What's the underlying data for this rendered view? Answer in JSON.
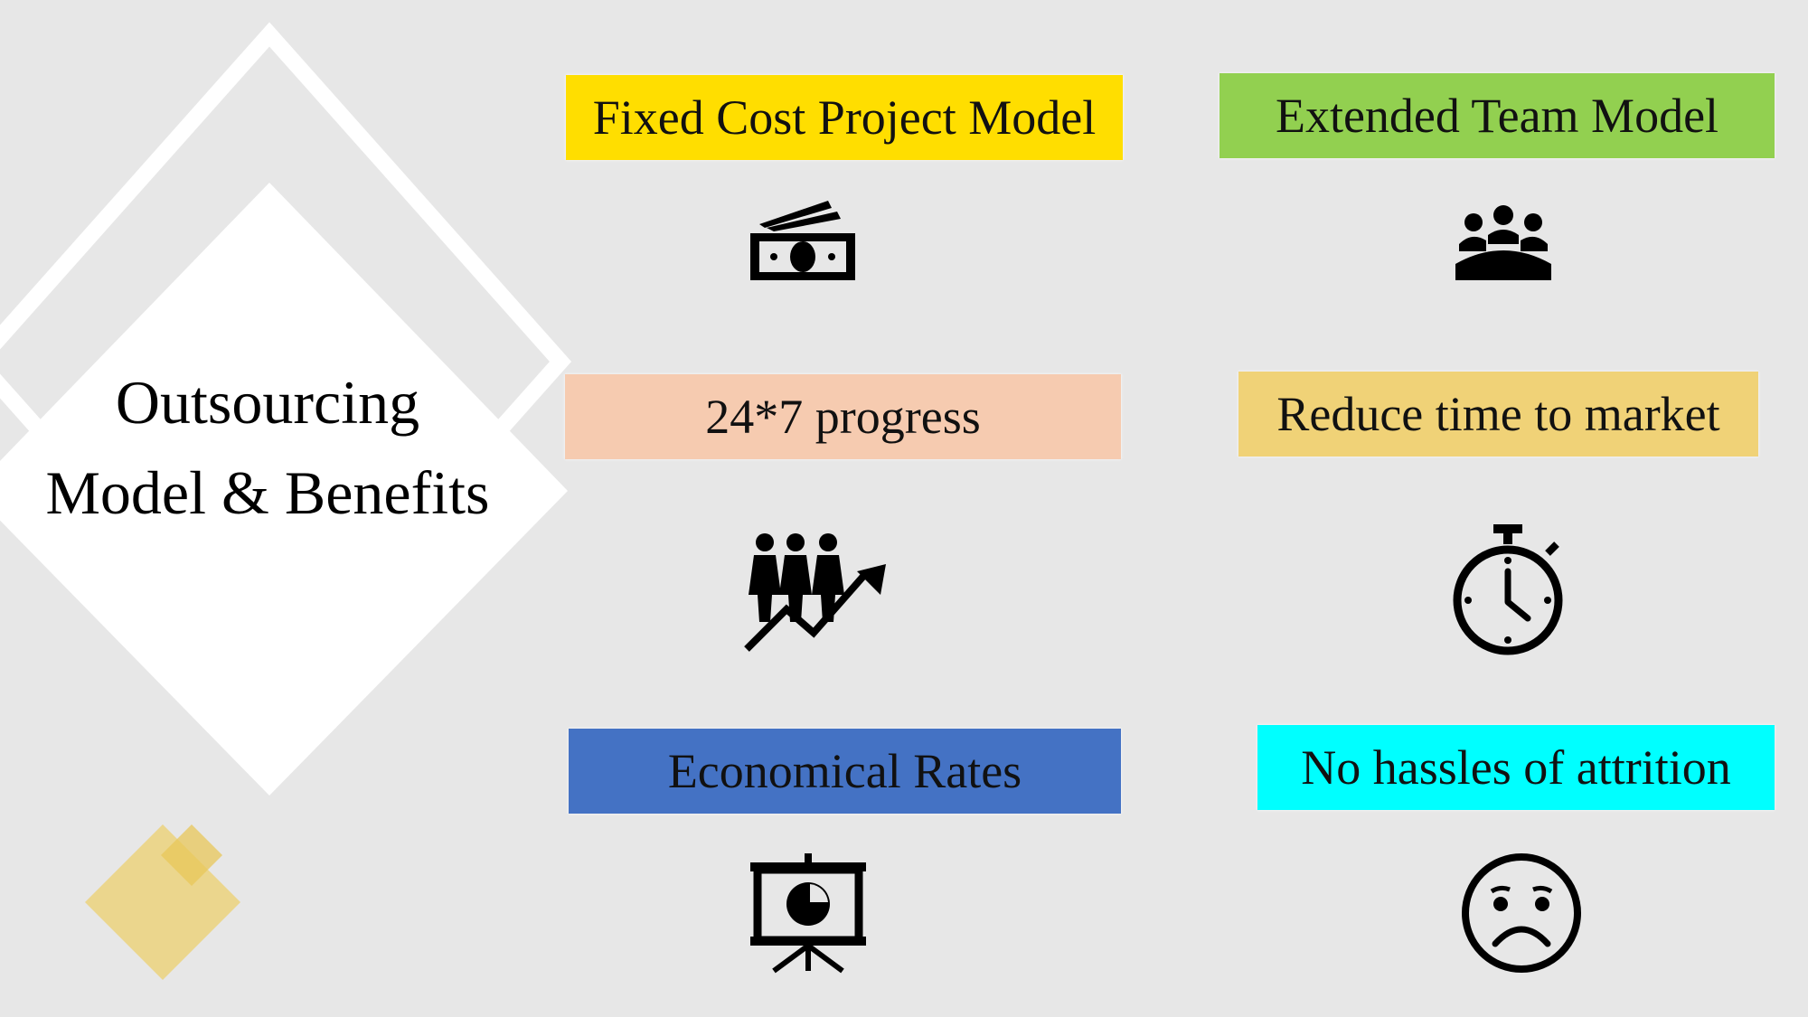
{
  "title": {
    "line1": "Outsourcing",
    "line2": "Model & Benefits"
  },
  "colors": {
    "background": "#e7e7e7",
    "fixed_cost": "#ffde00",
    "extended_team": "#92d050",
    "progress": "#f6cbb0",
    "reduce_time": "#f0d277",
    "economical": "#4472c4",
    "attrition": "#00ffff",
    "accent_gold": "#ecd277"
  },
  "items": [
    {
      "label": "Fixed Cost Project Model",
      "icon": "money-icon"
    },
    {
      "label": "Extended Team Model",
      "icon": "team-meeting-icon"
    },
    {
      "label": "24*7 progress",
      "icon": "growth-people-icon"
    },
    {
      "label": "Reduce time to market",
      "icon": "stopwatch-icon"
    },
    {
      "label": "Economical Rates",
      "icon": "presentation-chart-icon"
    },
    {
      "label": "No hassles of attrition",
      "icon": "sad-face-icon"
    }
  ]
}
